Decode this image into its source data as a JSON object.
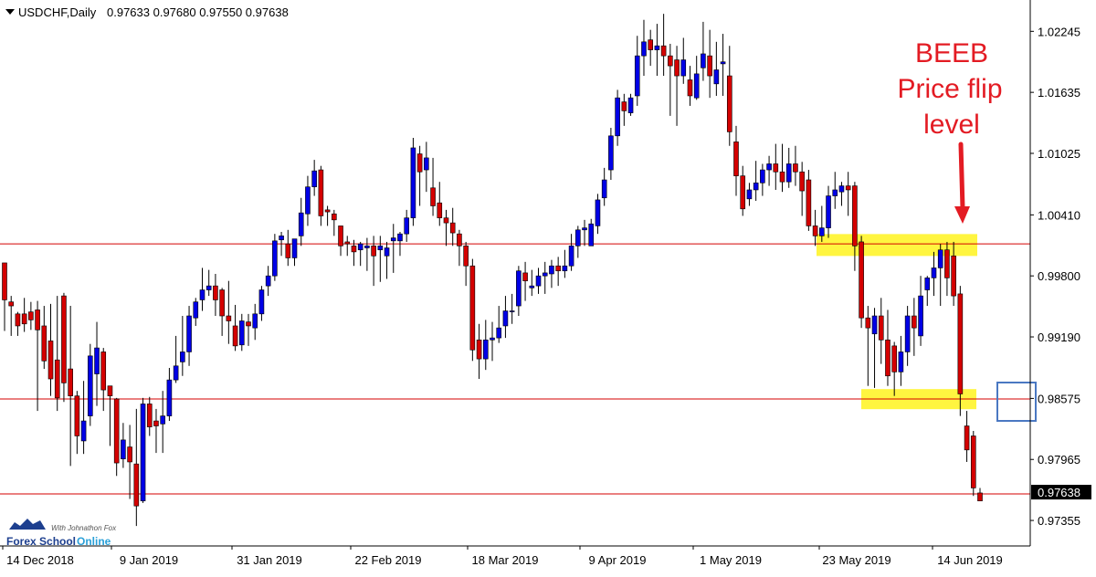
{
  "header": {
    "title": "USDCHF,Daily",
    "ohlc": "0.97633 0.97680 0.97550 0.97638"
  },
  "annotation": {
    "lines": [
      "BEEB",
      "Price flip",
      "level"
    ],
    "color": "#e31b23"
  },
  "watermark": {
    "tagline": "With Johnathon Fox",
    "brand_part1": "Forex School",
    "brand_part2": "Online"
  },
  "colors": {
    "bull": "#0000e6",
    "bear": "#d40000",
    "level_line": "#d40000",
    "highlight": "#fff200",
    "box": "#4a78c2"
  },
  "chart_data": {
    "type": "candlestick",
    "symbol": "USDCHF",
    "timeframe": "Daily",
    "ylim": [
      0.971,
      1.0254
    ],
    "y_ticks": [
      "1.02245",
      "1.01635",
      "1.01025",
      "1.00410",
      "0.99800",
      "0.99190",
      "0.98575",
      "0.97965",
      "0.97355"
    ],
    "x_labels": [
      "14 Dec 2018",
      "9 Jan 2019",
      "31 Jan 2019",
      "22 Feb 2019",
      "18 Mar 2019",
      "9 Apr 2019",
      "1 May 2019",
      "23 May 2019",
      "14 Jun 2019"
    ],
    "current_price": "0.97638",
    "horizontal_levels": [
      1.0012,
      0.9857,
      0.9762
    ],
    "candles": [
      [
        0.9993,
        0.999,
        0.9956,
        0.9925
      ],
      [
        0.9954,
        0.996,
        0.995,
        0.992
      ],
      [
        0.9942,
        0.9944,
        0.993,
        0.992
      ],
      [
        0.9942,
        0.9958,
        0.9932,
        0.9924
      ],
      [
        0.9944,
        0.9954,
        0.9936,
        0.9926
      ],
      [
        0.9946,
        0.9955,
        0.9926,
        0.9845
      ],
      [
        0.993,
        0.995,
        0.9895,
        0.9887
      ],
      [
        0.9915,
        0.9952,
        0.9877,
        0.986
      ],
      [
        0.9896,
        0.996,
        0.9858,
        0.9845
      ],
      [
        0.996,
        0.9963,
        0.9873,
        0.9854
      ],
      [
        0.9887,
        0.995,
        0.986,
        0.979
      ],
      [
        0.986,
        0.9865,
        0.982,
        0.9802
      ],
      [
        0.9815,
        0.9875,
        0.9835,
        0.9802
      ],
      [
        0.984,
        0.9912,
        0.99,
        0.983
      ],
      [
        0.9882,
        0.9934,
        0.9908,
        0.985
      ],
      [
        0.9904,
        0.9908,
        0.9866,
        0.9845
      ],
      [
        0.987,
        0.987,
        0.986,
        0.981
      ],
      [
        0.9857,
        0.9858,
        0.9793,
        0.978
      ],
      [
        0.9797,
        0.9833,
        0.9816,
        0.9788
      ],
      [
        0.9809,
        0.9831,
        0.9794,
        0.9757
      ],
      [
        0.9792,
        0.9847,
        0.975,
        0.973
      ],
      [
        0.9755,
        0.9858,
        0.9852,
        0.9753
      ],
      [
        0.9852,
        0.9859,
        0.9829,
        0.982
      ],
      [
        0.9835,
        0.9847,
        0.983,
        0.9803
      ],
      [
        0.9832,
        0.9865,
        0.984,
        0.9803
      ],
      [
        0.984,
        0.9888,
        0.9876,
        0.9835
      ],
      [
        0.9876,
        0.992,
        0.989,
        0.9873
      ],
      [
        0.9894,
        0.994,
        0.9904,
        0.988
      ],
      [
        0.9904,
        0.995,
        0.994,
        0.989
      ],
      [
        0.9938,
        0.9958,
        0.9954,
        0.993
      ],
      [
        0.9956,
        0.9988,
        0.9966,
        0.9945
      ],
      [
        0.9966,
        0.9986,
        0.997,
        0.996
      ],
      [
        0.997,
        0.9982,
        0.9956,
        0.994
      ],
      [
        0.9966,
        0.9968,
        0.994,
        0.992
      ],
      [
        0.994,
        0.9975,
        0.9935,
        0.9912
      ],
      [
        0.993,
        0.9951,
        0.991,
        0.9905
      ],
      [
        0.9911,
        0.9942,
        0.9935,
        0.9905
      ],
      [
        0.9934,
        0.9942,
        0.993,
        0.991
      ],
      [
        0.9928,
        0.9952,
        0.9942,
        0.9916
      ],
      [
        0.9942,
        0.997,
        0.9966,
        0.9935
      ],
      [
        0.997,
        0.999,
        0.998,
        0.996
      ],
      [
        0.998,
        1.0022,
        1.0015,
        0.9975
      ],
      [
        1.0016,
        1.0024,
        1.002,
        1.0
      ],
      [
        1.0012,
        1.0026,
        0.9998,
        0.999
      ],
      [
        0.9998,
        1.0013,
        1.0017,
        0.999
      ],
      [
        1.002,
        1.0058,
        1.0043,
        1.001
      ],
      [
        1.0042,
        1.008,
        1.0069,
        1.003
      ],
      [
        1.0069,
        1.0096,
        1.0085,
        1.006
      ],
      [
        1.0086,
        1.009,
        1.004,
        1.003
      ],
      [
        1.0046,
        1.005,
        1.0044,
        1.003
      ],
      [
        1.0042,
        1.0046,
        1.0036,
        1.002
      ],
      [
        1.003,
        1.003,
        1.001,
        1.0
      ],
      [
        1.0014,
        1.002,
        1.0012,
        1.0
      ],
      [
        1.001,
        1.0016,
        1.0004,
        0.999
      ],
      [
        1.0006,
        1.0014,
        1.0012,
        0.999
      ],
      [
        1.0008,
        1.0018,
        1.001,
        0.9985
      ],
      [
        1.001,
        1.002,
        1.0,
        0.997
      ],
      [
        1.0006,
        1.002,
        1.001,
        0.9974
      ],
      [
        1.0,
        1.0014,
        1.0008,
        0.9977
      ],
      [
        1.0015,
        1.0032,
        1.0018,
        0.9983
      ],
      [
        1.0015,
        1.0024,
        1.0022,
        1.0
      ],
      [
        1.0022,
        1.0046,
        1.0038,
        1.0014
      ],
      [
        1.0038,
        1.0118,
        1.0108,
        1.003
      ],
      [
        1.0102,
        1.011,
        1.0084,
        1.005
      ],
      [
        1.0086,
        1.0114,
        1.0098,
        1.0064
      ],
      [
        1.0068,
        1.0098,
        1.005,
        1.004
      ],
      [
        1.0053,
        1.0074,
        1.0038,
        1.003
      ],
      [
        1.0038,
        1.0046,
        1.0033,
        1.001
      ],
      [
        1.0033,
        1.0048,
        1.0023,
        1.001
      ],
      [
        1.0022,
        1.0026,
        1.001,
        0.999
      ],
      [
        1.001,
        1.0014,
        0.999,
        0.997
      ],
      [
        0.999,
        0.9997,
        0.9906,
        0.9895
      ],
      [
        0.9916,
        0.9932,
        0.9897,
        0.9877
      ],
      [
        0.9897,
        0.9936,
        0.9916,
        0.9886
      ],
      [
        0.9916,
        0.9934,
        0.9918,
        0.9895
      ],
      [
        0.9918,
        0.995,
        0.9928,
        0.9913
      ],
      [
        0.993,
        0.996,
        0.9945,
        0.9918
      ],
      [
        0.9945,
        0.9962,
        0.9945,
        0.9932
      ],
      [
        0.995,
        0.999,
        0.9985,
        0.994
      ],
      [
        0.9983,
        0.9994,
        0.9975,
        0.9955
      ],
      [
        0.9968,
        0.9986,
        0.997,
        0.996
      ],
      [
        0.997,
        0.9988,
        0.998,
        0.9962
      ],
      [
        0.998,
        0.9994,
        0.9983,
        0.9962
      ],
      [
        0.9982,
        0.9996,
        0.999,
        0.9968
      ],
      [
        0.999,
        0.9999,
        0.9985,
        0.997
      ],
      [
        0.9985,
        1.0006,
        0.999,
        0.9978
      ],
      [
        0.999,
        1.0022,
        1.001,
        0.9985
      ],
      [
        1.001,
        1.003,
        1.0026,
        0.9998
      ],
      [
        1.0026,
        1.0036,
        1.0028,
        1.001
      ],
      [
        1.001,
        1.0037,
        1.0032,
        1.0012
      ],
      [
        1.003,
        1.0062,
        1.0056,
        1.0022
      ],
      [
        1.0058,
        1.0088,
        1.0076,
        1.005
      ],
      [
        1.0086,
        1.0128,
        1.012,
        1.0076
      ],
      [
        1.012,
        1.0166,
        1.0158,
        1.011
      ],
      [
        1.0154,
        1.0162,
        1.0145,
        1.013
      ],
      [
        1.0143,
        1.0162,
        1.0158,
        1.014
      ],
      [
        1.016,
        1.022,
        1.02,
        1.015
      ],
      [
        1.02,
        1.0236,
        1.0214,
        1.018
      ],
      [
        1.0216,
        1.0226,
        1.0206,
        1.019
      ],
      [
        1.0206,
        1.0232,
        1.021,
        1.018
      ],
      [
        1.021,
        1.0242,
        1.02,
        1.018
      ],
      [
        1.02,
        1.0212,
        1.019,
        1.014
      ],
      [
        1.0196,
        1.021,
        1.018,
        1.013
      ],
      [
        1.018,
        1.0218,
        1.0196,
        1.0172
      ],
      [
        1.0176,
        1.019,
        1.016,
        1.015
      ],
      [
        1.0158,
        1.02,
        1.0182,
        1.0156
      ],
      [
        1.0188,
        1.0234,
        1.0202,
        1.0175
      ],
      [
        1.02,
        1.0226,
        1.018,
        1.0158
      ],
      [
        1.0172,
        1.0214,
        1.0186,
        1.016
      ],
      [
        1.0192,
        1.0222,
        1.0194,
        1.016
      ],
      [
        1.018,
        1.021,
        1.0124,
        1.011
      ],
      [
        1.0114,
        1.013,
        1.008,
        1.006
      ],
      [
        1.008,
        1.009,
        1.0047,
        1.004
      ],
      [
        1.0057,
        1.0073,
        1.0066,
        1.005
      ],
      [
        1.0066,
        1.0095,
        1.0073,
        1.0055
      ],
      [
        1.0073,
        1.0092,
        1.0086,
        1.006
      ],
      [
        1.0086,
        1.01,
        1.0092,
        1.007
      ],
      [
        1.0092,
        1.0112,
        1.0084,
        1.0066
      ],
      [
        1.0084,
        1.0112,
        1.0074,
        1.0064
      ],
      [
        1.0074,
        1.0108,
        1.0092,
        1.0068
      ],
      [
        1.0092,
        1.011,
        1.0084,
        1.007
      ],
      [
        1.0084,
        1.0094,
        1.0065,
        1.004
      ],
      [
        1.0076,
        1.0086,
        1.003,
        1.0025
      ],
      [
        1.003,
        1.0046,
        1.002,
        1.001
      ],
      [
        1.002,
        1.005,
        1.0028,
        1.0014
      ],
      [
        1.0028,
        1.007,
        1.006,
        1.0018
      ],
      [
        1.006,
        1.0084,
        1.0066,
        1.0047
      ],
      [
        1.0064,
        1.0074,
        1.007,
        1.005
      ],
      [
        1.007,
        1.0084,
        1.0066,
        1.004
      ],
      [
        1.007,
        1.0074,
        1.001,
        0.9985
      ],
      [
        1.0014,
        1.002,
        0.9938,
        0.9928
      ],
      [
        0.9938,
        0.995,
        0.9928,
        0.987
      ],
      [
        0.9922,
        0.9948,
        0.994,
        0.9868
      ],
      [
        0.994,
        0.9958,
        0.9916,
        0.9892
      ],
      [
        0.9916,
        0.9946,
        0.988,
        0.987
      ],
      [
        0.991,
        0.9914,
        0.9884,
        0.986
      ],
      [
        0.9884,
        0.992,
        0.9904,
        0.987
      ],
      [
        0.9904,
        0.995,
        0.994,
        0.989
      ],
      [
        0.994,
        0.9958,
        0.9928,
        0.99
      ],
      [
        0.992,
        0.998,
        0.996,
        0.991
      ],
      [
        0.9966,
        0.998,
        0.9978,
        0.995
      ],
      [
        0.9978,
        1.0004,
        0.9988,
        0.996
      ],
      [
        0.9988,
        1.0012,
        1.0006,
        0.995
      ],
      [
        1.0006,
        1.0014,
        0.9978,
        0.996
      ],
      [
        1.0,
        1.0014,
        0.996,
        0.995
      ],
      [
        0.9962,
        0.997,
        0.9862,
        0.984
      ],
      [
        0.983,
        0.9845,
        0.9806,
        0.9794
      ],
      [
        0.982,
        0.9825,
        0.9768,
        0.976
      ],
      [
        0.9763,
        0.9768,
        0.9755,
        0.976
      ]
    ]
  }
}
